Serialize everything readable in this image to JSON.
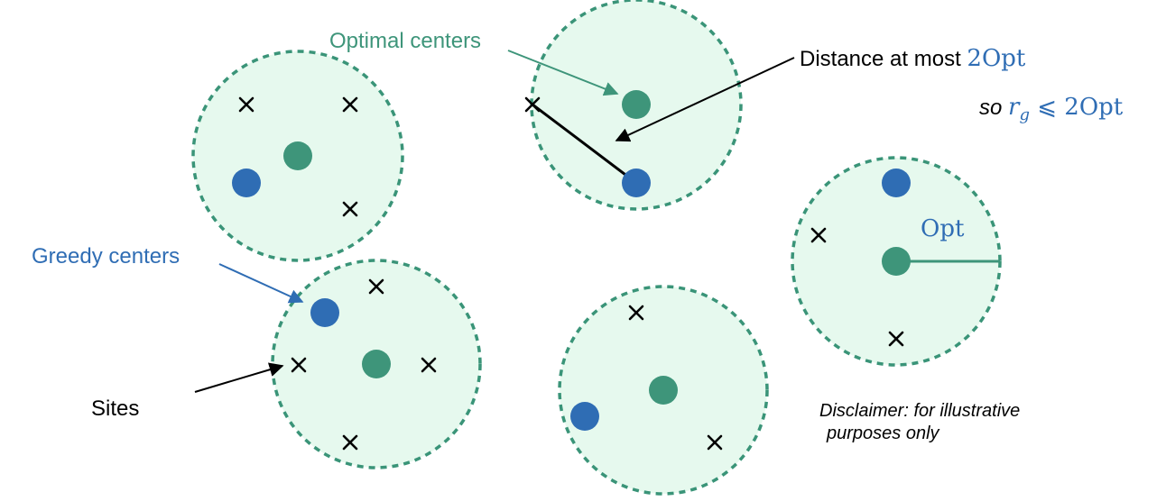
{
  "colors": {
    "circle_fill": "#e6f9ee",
    "circle_stroke": "#3a9478",
    "optimal_center": "#3e957a",
    "greedy_center": "#2f6db4",
    "site": "#000000",
    "label_blue": "#2f6db4",
    "label_green": "#3e957a",
    "text": "#000000"
  },
  "labels": {
    "optimal_centers": "Optimal centers",
    "greedy_centers": "Greedy centers",
    "sites": "Sites",
    "distance_prefix": "Distance at most ",
    "distance_math": "2Opt",
    "so_prefix": "so ",
    "so_math_r": "r",
    "so_math_sub": "g",
    "so_math_rel": " ⩽ 2Opt",
    "opt_radius": "Opt",
    "disclaimer_line1": "Disclaimer: for illustrative",
    "disclaimer_line2": "purposes only"
  },
  "icons": {
    "site_marker": "cross-icon",
    "optimal_center": "filled-circle-icon",
    "greedy_center": "filled-circle-icon"
  }
}
